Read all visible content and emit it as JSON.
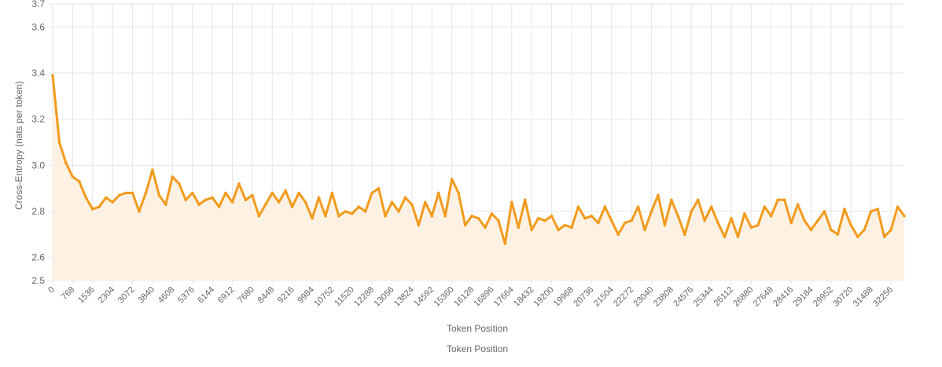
{
  "chart_data": {
    "type": "line",
    "title": "",
    "xlabel": "Token Position",
    "xlabel_secondary": "Token Position",
    "ylabel": "Cross-Entropy (nats per token)",
    "xlim": [
      0,
      32768
    ],
    "ylim": [
      2.5,
      3.7
    ],
    "y_ticks": [
      2.5,
      2.6,
      2.8,
      3.0,
      3.2,
      3.4,
      3.6,
      3.7
    ],
    "x_ticks": [
      0,
      768,
      1536,
      2304,
      3072,
      3840,
      4608,
      5376,
      6144,
      6912,
      7680,
      8448,
      9216,
      9984,
      10752,
      11520,
      12288,
      13056,
      13824,
      14592,
      15360,
      16128,
      16896,
      17664,
      18432,
      19200,
      19968,
      20736,
      21504,
      22272,
      23040,
      23808,
      24576,
      25344,
      26112,
      26880,
      27648,
      28416,
      29184,
      29952,
      30720,
      31488,
      32256
    ],
    "grid": true,
    "fill": true,
    "series": [
      {
        "name": "Cross-Entropy",
        "color": "#f29b1d",
        "fill_color": "#fdf1e4",
        "x_step": 256,
        "values": [
          3.39,
          3.1,
          3.01,
          2.95,
          2.93,
          2.86,
          2.81,
          2.82,
          2.86,
          2.84,
          2.87,
          2.88,
          2.88,
          2.8,
          2.88,
          2.98,
          2.87,
          2.83,
          2.95,
          2.92,
          2.85,
          2.88,
          2.83,
          2.85,
          2.86,
          2.82,
          2.88,
          2.84,
          2.92,
          2.85,
          2.87,
          2.78,
          2.83,
          2.88,
          2.84,
          2.89,
          2.82,
          2.88,
          2.84,
          2.77,
          2.86,
          2.78,
          2.88,
          2.78,
          2.8,
          2.79,
          2.82,
          2.8,
          2.88,
          2.9,
          2.78,
          2.84,
          2.8,
          2.86,
          2.83,
          2.74,
          2.84,
          2.78,
          2.88,
          2.78,
          2.94,
          2.88,
          2.74,
          2.78,
          2.77,
          2.73,
          2.79,
          2.76,
          2.66,
          2.84,
          2.73,
          2.85,
          2.72,
          2.77,
          2.76,
          2.78,
          2.72,
          2.74,
          2.73,
          2.82,
          2.77,
          2.78,
          2.75,
          2.82,
          2.76,
          2.7,
          2.75,
          2.76,
          2.82,
          2.72,
          2.8,
          2.87,
          2.74,
          2.85,
          2.78,
          2.7,
          2.8,
          2.85,
          2.76,
          2.82,
          2.75,
          2.69,
          2.77,
          2.69,
          2.79,
          2.73,
          2.74,
          2.82,
          2.78,
          2.85,
          2.85,
          2.75,
          2.83,
          2.76,
          2.72,
          2.76,
          2.8,
          2.72,
          2.7,
          2.81,
          2.74,
          2.69,
          2.72,
          2.8,
          2.81,
          2.69,
          2.72,
          2.82,
          2.78
        ]
      }
    ]
  }
}
